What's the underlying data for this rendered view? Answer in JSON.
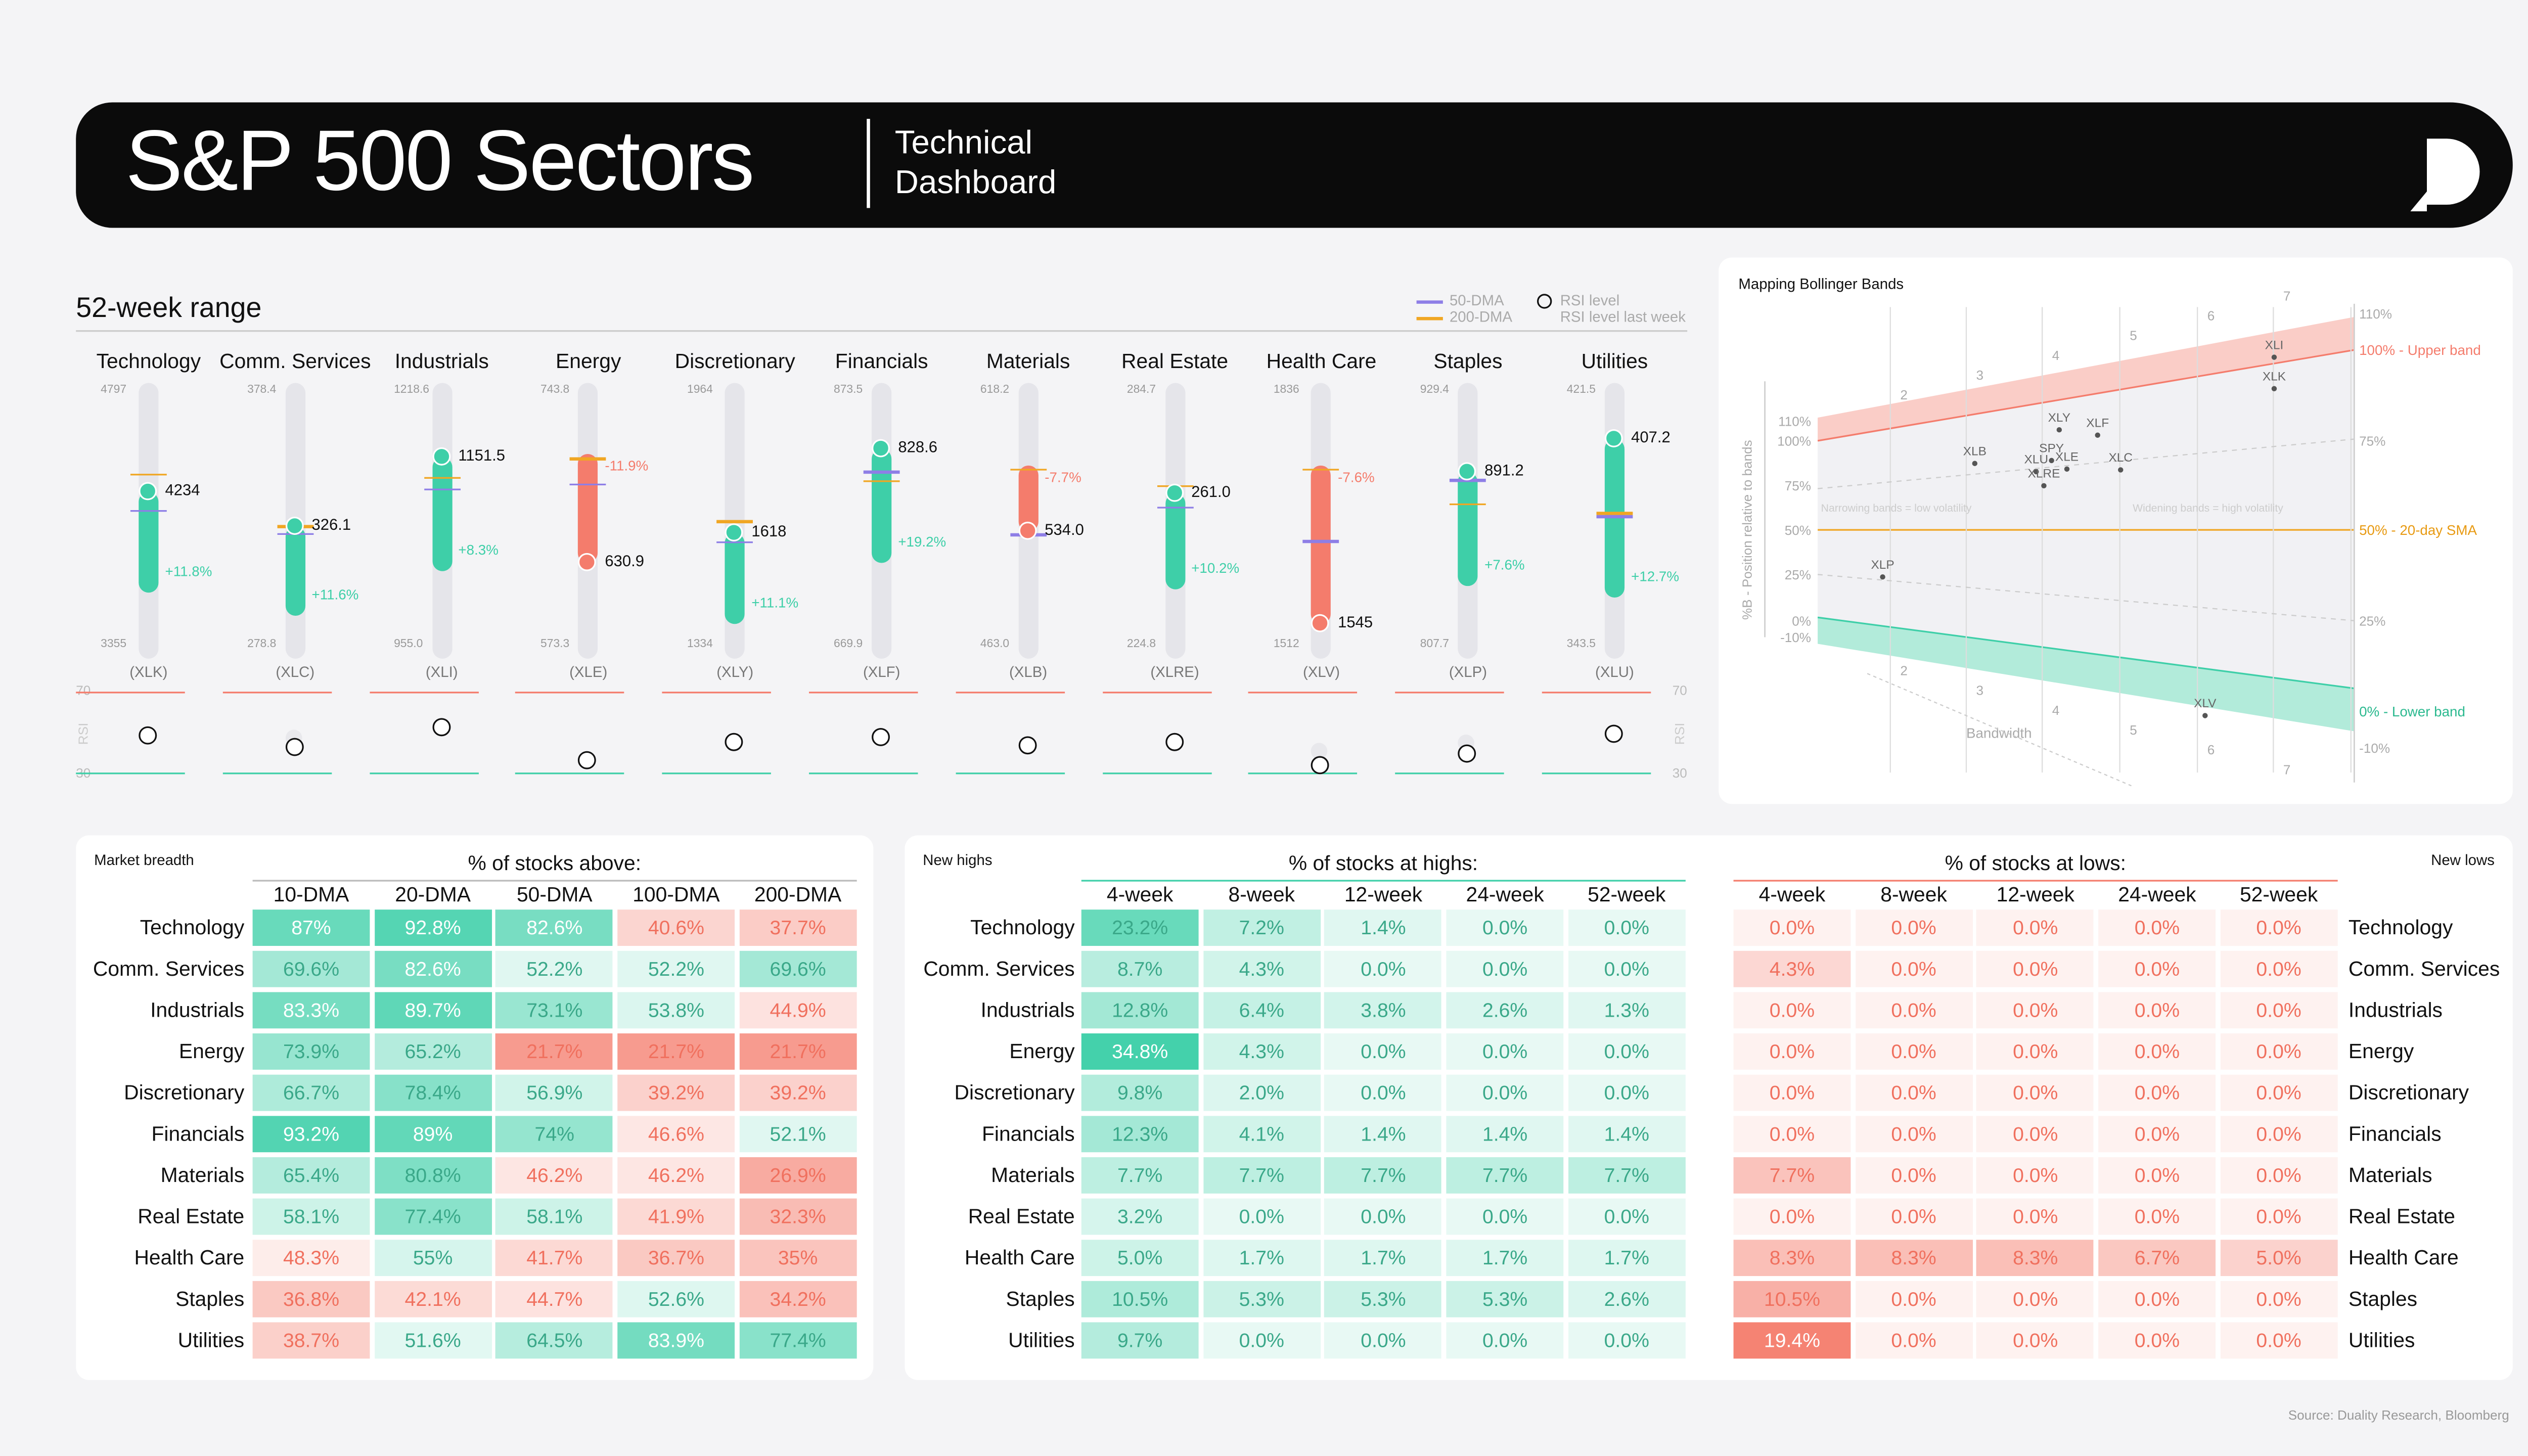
{
  "header": {
    "title": "S&P 500 Sectors",
    "subtitle_line1": "Technical",
    "subtitle_line2": "Dashboard"
  },
  "range_panel": {
    "title": "52-week range",
    "legend": {
      "dma50": "50-DMA",
      "dma200": "200-DMA",
      "rsi": "RSI level",
      "rsi_last": "RSI level last week"
    },
    "rsi_axis": {
      "top": "70",
      "bottom": "30",
      "label": "RSI"
    }
  },
  "colors": {
    "green": "#3ecfa8",
    "red": "#f47c6c",
    "purple": "#8e7ee6",
    "orange": "#f0a623",
    "track": "#e5e5ea"
  },
  "chart_data": [
    {
      "type": "range",
      "title": "52-week range",
      "sectors": [
        {
          "name": "Technology",
          "ticker": "(XLK)",
          "high": 4797,
          "high_label": "4797",
          "low": 3355,
          "low_label": "3355",
          "price": 4234,
          "price_label": "4234",
          "change": "+11.8%",
          "dir": "up",
          "dma50": 4140,
          "dma200": 4340,
          "rsi": 48,
          "rsi_last": null
        },
        {
          "name": "Comm. Services",
          "ticker": "(XLC)",
          "high": 378.4,
          "high_label": "378.4",
          "low": 278.8,
          "low_label": "278.8",
          "price": 326.1,
          "price_label": "326.1",
          "change": "+11.6%",
          "dir": "up",
          "dma50": 324,
          "dma200": 327,
          "rsi": 42,
          "rsi_last": 46
        },
        {
          "name": "Industrials",
          "ticker": "(XLI)",
          "high": 1218.6,
          "high_label": "1218.6",
          "low": 955.0,
          "low_label": "955.0",
          "price": 1151.5,
          "price_label": "1151.5",
          "change": "+8.3%",
          "dir": "up",
          "dma50": 1120,
          "dma200": 1132,
          "rsi": 52,
          "rsi_last": null
        },
        {
          "name": "Energy",
          "ticker": "(XLE)",
          "high": 743.8,
          "high_label": "743.8",
          "low": 573.3,
          "low_label": "573.3",
          "price": 630.9,
          "price_label": "630.9",
          "change": "-11.9%",
          "dir": "down",
          "dma50": 683,
          "dma200": 700,
          "rsi": 36,
          "rsi_last": null
        },
        {
          "name": "Discretionary",
          "ticker": "(XLY)",
          "high": 1964,
          "high_label": "1964",
          "low": 1334,
          "low_label": "1334",
          "price": 1618,
          "price_label": "1618",
          "change": "+11.1%",
          "dir": "up",
          "dma50": 1600,
          "dma200": 1650,
          "rsi": 45,
          "rsi_last": null
        },
        {
          "name": "Financials",
          "ticker": "(XLF)",
          "high": 873.5,
          "high_label": "873.5",
          "low": 669.9,
          "low_label": "669.9",
          "price": 828.6,
          "price_label": "828.6",
          "change": "+19.2%",
          "dir": "up",
          "dma50": 811,
          "dma200": 804,
          "rsi": 47,
          "rsi_last": null
        },
        {
          "name": "Materials",
          "ticker": "(XLB)",
          "high": 618.2,
          "high_label": "618.2",
          "low": 463.0,
          "low_label": "463.0",
          "price": 534.0,
          "price_label": "534.0",
          "change": "-7.7%",
          "dir": "down",
          "dma50": 533,
          "dma200": 572,
          "rsi": 43,
          "rsi_last": null
        },
        {
          "name": "Real Estate",
          "ticker": "(XLRE)",
          "high": 284.7,
          "high_label": "284.7",
          "low": 224.8,
          "low_label": "224.8",
          "price": 261.0,
          "price_label": "261.0",
          "change": "+10.2%",
          "dir": "up",
          "dma50": 258,
          "dma200": 263,
          "rsi": 45,
          "rsi_last": null
        },
        {
          "name": "Health Care",
          "ticker": "(XLV)",
          "high": 1836,
          "high_label": "1836",
          "low": 1512,
          "low_label": "1512",
          "price": 1545,
          "price_label": "1545",
          "change": "-7.6%",
          "dir": "down",
          "dma50": 1650,
          "dma200": 1740,
          "rsi": 33,
          "rsi_last": 40
        },
        {
          "name": "Staples",
          "ticker": "(XLP)",
          "high": 929.4,
          "high_label": "929.4",
          "low": 807.7,
          "low_label": "807.7",
          "price": 891.2,
          "price_label": "891.2",
          "change": "+7.6%",
          "dir": "up",
          "dma50": 888,
          "dma200": 877,
          "rsi": 39,
          "rsi_last": 44
        },
        {
          "name": "Utilities",
          "ticker": "(XLU)",
          "high": 421.5,
          "high_label": "421.5",
          "low": 343.5,
          "low_label": "343.5",
          "price": 407.2,
          "price_label": "407.2",
          "change": "+12.7%",
          "dir": "up",
          "dma50": 384,
          "dma200": 385,
          "rsi": 49,
          "rsi_last": null
        }
      ]
    },
    {
      "type": "scatter",
      "title": "Mapping Bollinger Bands",
      "ylabel": "%B - Position relative to bands",
      "xlabel": "Bandwidth",
      "y_ticks_left": [
        "110%",
        "100%",
        "75%",
        "50%",
        "25%",
        "0%",
        "-10%"
      ],
      "y_ticks_right": [
        "110%",
        "75%",
        "25%",
        "-10%"
      ],
      "bandwidth_ticks": [
        "2",
        "3",
        "4",
        "5",
        "6",
        "7"
      ],
      "band_labels": {
        "upper": "100% - Upper band",
        "mid": "50% - 20-day SMA",
        "lower": "0% - Lower band"
      },
      "notes": {
        "narrow": "Narrowing bands = low volatility",
        "wide": "Widening bands = high volatility"
      },
      "points": [
        {
          "label": "XLI",
          "bandwidth": 7.0,
          "pctb": 1.02
        },
        {
          "label": "XLK",
          "bandwidth": 7.0,
          "pctb": 0.92
        },
        {
          "label": "XLY",
          "bandwidth": 4.2,
          "pctb": 0.88
        },
        {
          "label": "XLF",
          "bandwidth": 4.7,
          "pctb": 0.84
        },
        {
          "label": "XLB",
          "bandwidth": 3.1,
          "pctb": 0.78
        },
        {
          "label": "SPY",
          "bandwidth": 4.1,
          "pctb": 0.76
        },
        {
          "label": "XLU",
          "bandwidth": 3.9,
          "pctb": 0.72
        },
        {
          "label": "XLE",
          "bandwidth": 4.3,
          "pctb": 0.72
        },
        {
          "label": "XLC",
          "bandwidth": 5.0,
          "pctb": 0.7
        },
        {
          "label": "XLRE",
          "bandwidth": 4.0,
          "pctb": 0.66
        },
        {
          "label": "XLP",
          "bandwidth": 1.9,
          "pctb": 0.25
        },
        {
          "label": "XLV",
          "bandwidth": 6.1,
          "pctb": -0.16
        }
      ]
    },
    {
      "type": "table",
      "title": "Market breadth",
      "group_header": "% of stocks above:",
      "columns": [
        "10-DMA",
        "20-DMA",
        "50-DMA",
        "100-DMA",
        "200-DMA"
      ],
      "rows": [
        "Technology",
        "Comm. Services",
        "Industrials",
        "Energy",
        "Discretionary",
        "Financials",
        "Materials",
        "Real Estate",
        "Health Care",
        "Staples",
        "Utilities"
      ],
      "values": [
        [
          "87%",
          "92.8%",
          "82.6%",
          "40.6%",
          "37.7%"
        ],
        [
          "69.6%",
          "82.6%",
          "52.2%",
          "52.2%",
          "69.6%"
        ],
        [
          "83.3%",
          "89.7%",
          "73.1%",
          "53.8%",
          "44.9%"
        ],
        [
          "73.9%",
          "65.2%",
          "21.7%",
          "21.7%",
          "21.7%"
        ],
        [
          "66.7%",
          "78.4%",
          "56.9%",
          "39.2%",
          "39.2%"
        ],
        [
          "93.2%",
          "89%",
          "74%",
          "46.6%",
          "52.1%"
        ],
        [
          "65.4%",
          "80.8%",
          "46.2%",
          "46.2%",
          "26.9%"
        ],
        [
          "58.1%",
          "77.4%",
          "58.1%",
          "41.9%",
          "32.3%"
        ],
        [
          "48.3%",
          "55%",
          "41.7%",
          "36.7%",
          "35%"
        ],
        [
          "36.8%",
          "42.1%",
          "44.7%",
          "52.6%",
          "34.2%"
        ],
        [
          "38.7%",
          "51.6%",
          "64.5%",
          "83.9%",
          "77.4%"
        ]
      ]
    },
    {
      "type": "table",
      "title": "New highs",
      "group_header": "% of stocks at highs:",
      "columns": [
        "4-week",
        "8-week",
        "12-week",
        "24-week",
        "52-week"
      ],
      "rows": [
        "Technology",
        "Comm. Services",
        "Industrials",
        "Energy",
        "Discretionary",
        "Financials",
        "Materials",
        "Real Estate",
        "Health Care",
        "Staples",
        "Utilities"
      ],
      "values": [
        [
          "23.2%",
          "7.2%",
          "1.4%",
          "0.0%",
          "0.0%"
        ],
        [
          "8.7%",
          "4.3%",
          "0.0%",
          "0.0%",
          "0.0%"
        ],
        [
          "12.8%",
          "6.4%",
          "3.8%",
          "2.6%",
          "1.3%"
        ],
        [
          "34.8%",
          "4.3%",
          "0.0%",
          "0.0%",
          "0.0%"
        ],
        [
          "9.8%",
          "2.0%",
          "0.0%",
          "0.0%",
          "0.0%"
        ],
        [
          "12.3%",
          "4.1%",
          "1.4%",
          "1.4%",
          "1.4%"
        ],
        [
          "7.7%",
          "7.7%",
          "7.7%",
          "7.7%",
          "7.7%"
        ],
        [
          "3.2%",
          "0.0%",
          "0.0%",
          "0.0%",
          "0.0%"
        ],
        [
          "5.0%",
          "1.7%",
          "1.7%",
          "1.7%",
          "1.7%"
        ],
        [
          "10.5%",
          "5.3%",
          "5.3%",
          "5.3%",
          "2.6%"
        ],
        [
          "9.7%",
          "0.0%",
          "0.0%",
          "0.0%",
          "0.0%"
        ]
      ]
    },
    {
      "type": "table",
      "title": "New lows",
      "group_header": "% of stocks at lows:",
      "columns": [
        "4-week",
        "8-week",
        "12-week",
        "24-week",
        "52-week"
      ],
      "rows": [
        "Technology",
        "Comm. Services",
        "Industrials",
        "Energy",
        "Discretionary",
        "Financials",
        "Materials",
        "Real Estate",
        "Health Care",
        "Staples",
        "Utilities"
      ],
      "values": [
        [
          "0.0%",
          "0.0%",
          "0.0%",
          "0.0%",
          "0.0%"
        ],
        [
          "4.3%",
          "0.0%",
          "0.0%",
          "0.0%",
          "0.0%"
        ],
        [
          "0.0%",
          "0.0%",
          "0.0%",
          "0.0%",
          "0.0%"
        ],
        [
          "0.0%",
          "0.0%",
          "0.0%",
          "0.0%",
          "0.0%"
        ],
        [
          "0.0%",
          "0.0%",
          "0.0%",
          "0.0%",
          "0.0%"
        ],
        [
          "0.0%",
          "0.0%",
          "0.0%",
          "0.0%",
          "0.0%"
        ],
        [
          "7.7%",
          "0.0%",
          "0.0%",
          "0.0%",
          "0.0%"
        ],
        [
          "0.0%",
          "0.0%",
          "0.0%",
          "0.0%",
          "0.0%"
        ],
        [
          "8.3%",
          "8.3%",
          "8.3%",
          "6.7%",
          "5.0%"
        ],
        [
          "10.5%",
          "0.0%",
          "0.0%",
          "0.0%",
          "0.0%"
        ],
        [
          "19.4%",
          "0.0%",
          "0.0%",
          "0.0%",
          "0.0%"
        ]
      ]
    }
  ],
  "footer": {
    "source": "Source: Duality Research, Bloomberg"
  }
}
